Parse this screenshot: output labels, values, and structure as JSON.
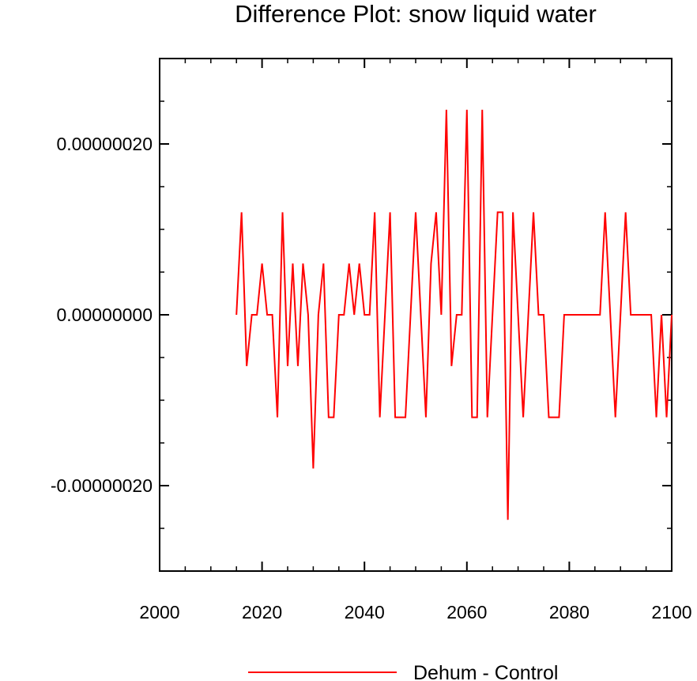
{
  "chart_data": {
    "type": "line",
    "title": "Difference Plot: snow liquid water",
    "xlabel": "",
    "ylabel": "",
    "xlim": [
      2000,
      2100
    ],
    "ylim": [
      -3e-07,
      3e-07
    ],
    "x_ticks": [
      2000,
      2020,
      2040,
      2060,
      2080,
      2100
    ],
    "x_tick_labels": [
      "2000",
      "2020",
      "2040",
      "2060",
      "2080",
      "2100"
    ],
    "y_ticks": [
      -2e-07,
      0,
      2e-07
    ],
    "y_tick_labels": [
      "-0.00000020",
      "0.00000000",
      "0.00000020"
    ],
    "grid": false,
    "legend_position": "bottom",
    "series": [
      {
        "name": "Dehum - Control",
        "color": "#ff0000",
        "x": [
          2015,
          2016,
          2017,
          2018,
          2019,
          2020,
          2021,
          2022,
          2023,
          2024,
          2025,
          2026,
          2027,
          2028,
          2029,
          2030,
          2031,
          2032,
          2033,
          2034,
          2035,
          2036,
          2037,
          2038,
          2039,
          2040,
          2041,
          2042,
          2043,
          2044,
          2045,
          2046,
          2047,
          2048,
          2049,
          2050,
          2051,
          2052,
          2053,
          2054,
          2055,
          2056,
          2057,
          2058,
          2059,
          2060,
          2061,
          2062,
          2063,
          2064,
          2065,
          2066,
          2067,
          2068,
          2069,
          2070,
          2071,
          2072,
          2073,
          2074,
          2075,
          2076,
          2077,
          2078,
          2079,
          2080,
          2081,
          2082,
          2083,
          2084,
          2085,
          2086,
          2087,
          2088,
          2089,
          2090,
          2091,
          2092,
          2093,
          2094,
          2095,
          2096,
          2097,
          2098,
          2099,
          2100
        ],
        "values": [
          0,
          1.2e-07,
          -6e-08,
          0,
          0,
          6e-08,
          0,
          0,
          -1.2e-07,
          1.2e-07,
          -6e-08,
          6e-08,
          -6e-08,
          6e-08,
          0,
          -1.8e-07,
          0,
          6e-08,
          -1.2e-07,
          -1.2e-07,
          0,
          0,
          6e-08,
          0,
          6e-08,
          0,
          0,
          1.2e-07,
          -1.2e-07,
          0,
          1.2e-07,
          -1.2e-07,
          -1.2e-07,
          -1.2e-07,
          0,
          1.2e-07,
          0,
          -1.2e-07,
          6e-08,
          1.2e-07,
          0,
          2.4e-07,
          -6e-08,
          0,
          0,
          2.4e-07,
          -1.2e-07,
          -1.2e-07,
          2.4e-07,
          -1.2e-07,
          0,
          1.2e-07,
          1.2e-07,
          -2.4e-07,
          1.2e-07,
          0,
          -1.2e-07,
          0,
          1.2e-07,
          0,
          0,
          -1.2e-07,
          -1.2e-07,
          -1.2e-07,
          0,
          0,
          0,
          0,
          0,
          0,
          0,
          0,
          1.2e-07,
          0,
          -1.2e-07,
          0,
          1.2e-07,
          0,
          0,
          0,
          0,
          0,
          -1.2e-07,
          0,
          -1.2e-07,
          0
        ]
      }
    ]
  }
}
